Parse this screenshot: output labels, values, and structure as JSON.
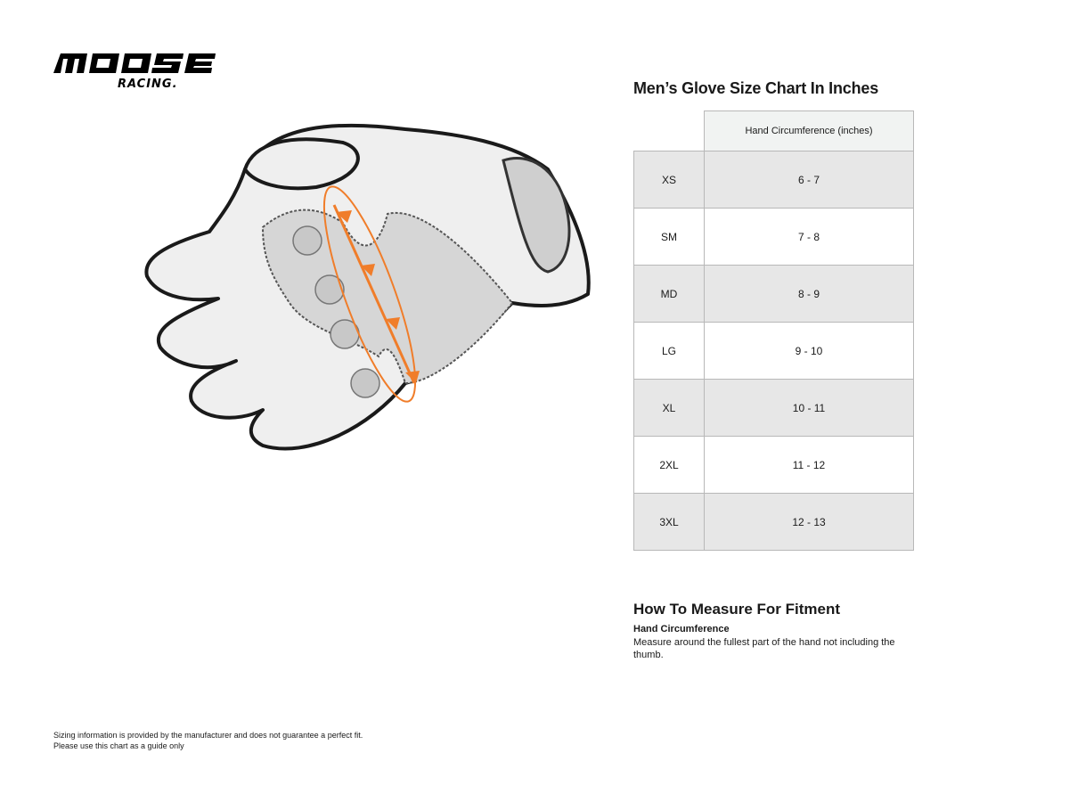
{
  "brand": {
    "logo_text": "MOOSE RACING"
  },
  "accent_color": "#f07d2a",
  "chart": {
    "title": "Men’s Glove Size Chart In Inches",
    "column_header": "Hand Circumference (inches)",
    "rows": [
      {
        "size": "XS",
        "value": "6 - 7"
      },
      {
        "size": "SM",
        "value": "7 - 8"
      },
      {
        "size": "MD",
        "value": "8 - 9"
      },
      {
        "size": "LG",
        "value": "9 - 10"
      },
      {
        "size": "XL",
        "value": "10 - 11"
      },
      {
        "size": "2XL",
        "value": "11 - 12"
      },
      {
        "size": "3XL",
        "value": "12 - 13"
      }
    ]
  },
  "measure": {
    "title": "How To Measure For Fitment",
    "subtitle": "Hand Circumference",
    "text": "Measure around the fullest part of the hand not including the thumb."
  },
  "disclaimer": {
    "line1": "Sizing information is provided by the manufacturer and does not guarantee a perfect fit.",
    "line2": "Please use this chart as a guide only"
  }
}
